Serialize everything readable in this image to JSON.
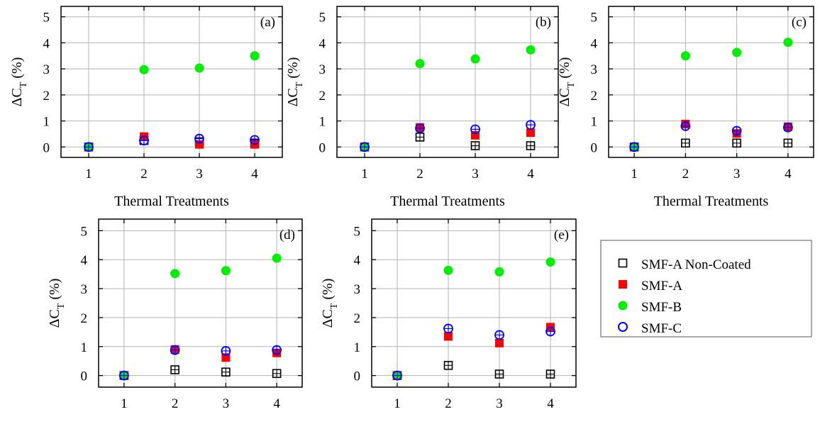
{
  "legend": [
    {
      "key": "A_nc",
      "label": "SMF-A Non-Coated",
      "marker": "open-square-plus",
      "color": "#000000"
    },
    {
      "key": "A",
      "label": "SMF-A",
      "marker": "filled-square",
      "color": "#ff0000"
    },
    {
      "key": "B",
      "label": "SMF-B",
      "marker": "filled-circle",
      "color": "#00ee00"
    },
    {
      "key": "C",
      "label": "SMF-C",
      "marker": "open-circle-plus",
      "color": "#0000ff"
    }
  ],
  "chart_data": [
    {
      "type": "scatter",
      "panel_label": "(a)",
      "xlabel": "Thermal Treatments",
      "ylabel_main": "ΔC",
      "ylabel_sub": "T",
      "ylabel_unit": " (%)",
      "xlim": [
        0.5,
        4.5
      ],
      "ylim": [
        -0.4,
        5.4
      ],
      "xticks": [
        1,
        2,
        3,
        4
      ],
      "yticks": [
        0,
        1,
        2,
        3,
        4,
        5
      ],
      "grid": true,
      "x": [
        1,
        2,
        3,
        4
      ],
      "series": [
        {
          "key": "A_nc",
          "values": [
            0,
            0.25,
            0.2,
            0.15
          ]
        },
        {
          "key": "A",
          "values": [
            0,
            0.4,
            0.1,
            0.1
          ]
        },
        {
          "key": "B",
          "values": [
            0,
            2.97,
            3.03,
            3.5
          ]
        },
        {
          "key": "C",
          "values": [
            0,
            0.25,
            0.32,
            0.27
          ]
        }
      ]
    },
    {
      "type": "scatter",
      "panel_label": "(b)",
      "xlabel": "Thermal Treatments",
      "ylabel_main": "ΔC",
      "ylabel_sub": "T",
      "ylabel_unit": " (%)",
      "xlim": [
        0.5,
        4.5
      ],
      "ylim": [
        -0.4,
        5.4
      ],
      "xticks": [
        1,
        2,
        3,
        4
      ],
      "yticks": [
        0,
        1,
        2,
        3,
        4,
        5
      ],
      "grid": true,
      "x": [
        1,
        2,
        3,
        4
      ],
      "series": [
        {
          "key": "A_nc",
          "values": [
            0,
            0.38,
            0.05,
            0.05
          ]
        },
        {
          "key": "A",
          "values": [
            0,
            0.75,
            0.45,
            0.55
          ]
        },
        {
          "key": "B",
          "values": [
            0,
            3.2,
            3.38,
            3.73
          ]
        },
        {
          "key": "C",
          "values": [
            0,
            0.72,
            0.68,
            0.85
          ]
        }
      ]
    },
    {
      "type": "scatter",
      "panel_label": "(c)",
      "xlabel": "Thermal Treatments",
      "ylabel_main": "ΔC",
      "ylabel_sub": "T",
      "ylabel_unit": " (%)",
      "xlim": [
        0.5,
        4.5
      ],
      "ylim": [
        -0.4,
        5.4
      ],
      "xticks": [
        1,
        2,
        3,
        4
      ],
      "yticks": [
        0,
        1,
        2,
        3,
        4,
        5
      ],
      "grid": true,
      "x": [
        1,
        2,
        3,
        4
      ],
      "series": [
        {
          "key": "A_nc",
          "values": [
            0,
            0.15,
            0.15,
            0.15
          ]
        },
        {
          "key": "A",
          "values": [
            0,
            0.88,
            0.52,
            0.78
          ]
        },
        {
          "key": "B",
          "values": [
            0,
            3.5,
            3.63,
            4.02
          ]
        },
        {
          "key": "C",
          "values": [
            0,
            0.8,
            0.62,
            0.75
          ]
        }
      ]
    },
    {
      "type": "scatter",
      "panel_label": "(d)",
      "xlabel": "Thermal Treatments",
      "ylabel_main": "ΔC",
      "ylabel_sub": "T",
      "ylabel_unit": " (%)",
      "xlim": [
        0.5,
        4.5
      ],
      "ylim": [
        -0.4,
        5.4
      ],
      "xticks": [
        1,
        2,
        3,
        4
      ],
      "yticks": [
        0,
        1,
        2,
        3,
        4,
        5
      ],
      "grid": true,
      "x": [
        1,
        2,
        3,
        4
      ],
      "series": [
        {
          "key": "A_nc",
          "values": [
            0,
            0.2,
            0.12,
            0.07
          ]
        },
        {
          "key": "A",
          "values": [
            0,
            0.9,
            0.62,
            0.78
          ]
        },
        {
          "key": "B",
          "values": [
            0,
            3.52,
            3.62,
            4.05
          ]
        },
        {
          "key": "C",
          "values": [
            0,
            0.88,
            0.85,
            0.88
          ]
        }
      ]
    },
    {
      "type": "scatter",
      "panel_label": "(e)",
      "xlabel": "Thermal Treatments",
      "ylabel_main": "ΔC",
      "ylabel_sub": "T",
      "ylabel_unit": " (%)",
      "xlim": [
        0.5,
        4.5
      ],
      "ylim": [
        -0.4,
        5.4
      ],
      "xticks": [
        1,
        2,
        3,
        4
      ],
      "yticks": [
        0,
        1,
        2,
        3,
        4,
        5
      ],
      "grid": true,
      "x": [
        1,
        2,
        3,
        4
      ],
      "series": [
        {
          "key": "A_nc",
          "values": [
            0,
            0.35,
            0.05,
            0.05
          ]
        },
        {
          "key": "A",
          "values": [
            0,
            1.35,
            1.12,
            1.67
          ]
        },
        {
          "key": "B",
          "values": [
            0,
            3.63,
            3.58,
            3.92
          ]
        },
        {
          "key": "C",
          "values": [
            0,
            1.62,
            1.4,
            1.52
          ]
        }
      ]
    }
  ]
}
